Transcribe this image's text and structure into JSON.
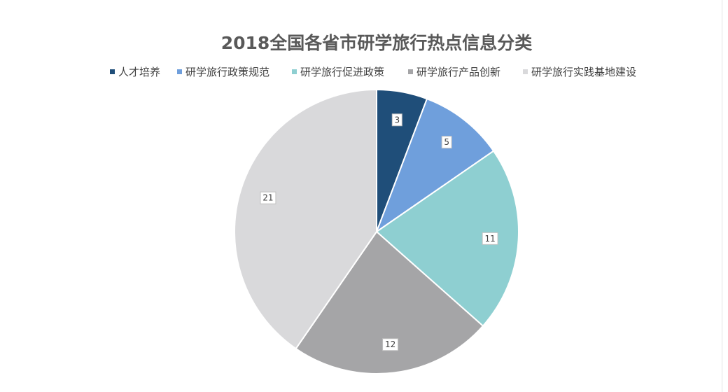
{
  "chart_data": {
    "type": "pie",
    "title": "2018全国各省市研学旅行热点信息分类",
    "legend_position": "top",
    "categories": [
      "人才培养",
      "研学旅行政策规范",
      "研学旅行促进政策",
      "研学旅行产品创新",
      "研学旅行实践基地建设"
    ],
    "values": [
      3,
      5,
      11,
      12,
      21
    ],
    "colors": [
      "#1f4e79",
      "#6f9fdc",
      "#8ecfd1",
      "#a5a5a7",
      "#d9d9db"
    ],
    "data_labels": [
      "3",
      "5",
      "11",
      "12",
      "21"
    ]
  }
}
